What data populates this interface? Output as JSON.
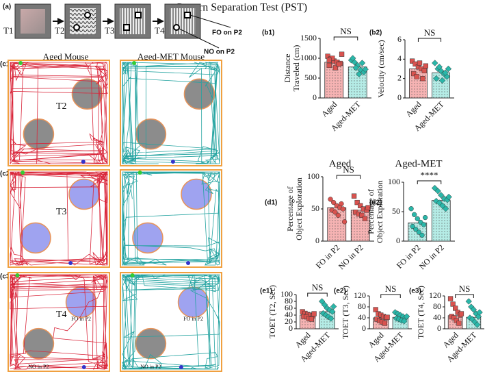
{
  "title": "Pattern Separation Test (PST)",
  "protocol": {
    "label": "(a)",
    "trials": [
      "T1",
      "T2",
      "T3",
      "T4"
    ],
    "callouts": [
      "FO on P2",
      "NO on P2"
    ]
  },
  "tracks": {
    "columns": [
      "Aged Mouse",
      "Aged-MET Mouse"
    ],
    "rows": [
      {
        "label": "(c1)",
        "trial": "T2"
      },
      {
        "label": "(c2)",
        "trial": "T3"
      },
      {
        "label": "(c3)",
        "trial": "T4",
        "objects": [
          "FO in P2",
          "NO in P2"
        ]
      }
    ]
  },
  "chart_data": [
    {
      "type": "bar",
      "label": "(b1)",
      "ylabel": [
        "Distance",
        "Traveled (cm)"
      ],
      "categories": [
        "Aged",
        "Aged-MET"
      ],
      "values": [
        900,
        780
      ],
      "colors": [
        "#f6b3b3",
        "#b5ece6"
      ],
      "point_colors": [
        "#d9534f",
        "#2ab7a9"
      ],
      "markers": [
        "square",
        "diamond"
      ],
      "points": [
        [
          1050,
          980,
          930,
          900,
          870,
          820,
          1000,
          760,
          850,
          1100,
          950
        ],
        [
          950,
          900,
          820,
          700,
          650,
          1000,
          760,
          600,
          880,
          720
        ]
      ],
      "ylim": [
        0,
        1500
      ],
      "yticks": [
        0,
        500,
        1000,
        1500
      ],
      "annotation": "NS"
    },
    {
      "type": "bar",
      "label": "(b2)",
      "ylabel": [
        "Velocity (cm/sec)"
      ],
      "categories": [
        "Aged",
        "Aged-MET"
      ],
      "values": [
        3.0,
        2.6
      ],
      "colors": [
        "#f6b3b3",
        "#b5ece6"
      ],
      "point_colors": [
        "#d9534f",
        "#2ab7a9"
      ],
      "markers": [
        "square",
        "diamond"
      ],
      "points": [
        [
          3.8,
          3.5,
          3.2,
          3.0,
          2.8,
          2.5,
          2.2,
          3.6,
          2.0,
          3.3
        ],
        [
          3.6,
          3.0,
          2.8,
          2.5,
          2.2,
          2.0,
          3.2,
          1.8,
          2.6,
          3.0
        ]
      ],
      "ylim": [
        0,
        6
      ],
      "yticks": [
        0,
        2,
        4,
        6
      ],
      "annotation": "NS"
    },
    {
      "type": "bar",
      "label": "(d1)",
      "title": "Aged",
      "ylabel": [
        "Percentage of",
        "Object Exploration"
      ],
      "categories": [
        "FO in P2",
        "NO in P2"
      ],
      "values": [
        52,
        48
      ],
      "colors": [
        "#f6b3b3",
        "#f6b3b3"
      ],
      "point_colors": [
        "#d9534f",
        "#d9534f"
      ],
      "markers": [
        "circle",
        "square"
      ],
      "points": [
        [
          65,
          60,
          55,
          52,
          50,
          48,
          45,
          40,
          58,
          30
        ],
        [
          70,
          60,
          55,
          50,
          48,
          45,
          42,
          40,
          35,
          52
        ]
      ],
      "ylim": [
        0,
        100
      ],
      "yticks": [
        0,
        50,
        100
      ],
      "annotation": "NS"
    },
    {
      "type": "bar",
      "label": "(d2)",
      "title": "Aged-MET",
      "ylabel": [
        "Percentage of",
        "Object Exploration"
      ],
      "categories": [
        "FO in P2",
        "NO in P2"
      ],
      "values": [
        31,
        69
      ],
      "colors": [
        "#b5ece6",
        "#b5ece6"
      ],
      "point_colors": [
        "#2ab7a9",
        "#2ab7a9"
      ],
      "markers": [
        "circle",
        "diamond"
      ],
      "points": [
        [
          55,
          45,
          38,
          32,
          28,
          25,
          20,
          15,
          10,
          40
        ],
        [
          90,
          85,
          78,
          72,
          70,
          68,
          65,
          60,
          55,
          75
        ]
      ],
      "ylim": [
        0,
        100
      ],
      "yticks": [
        0,
        50,
        100
      ],
      "annotation": "****"
    },
    {
      "type": "bar",
      "label": "(e1)",
      "ylabel": [
        "TOET (T2, Sec)"
      ],
      "categories": [
        "Aged",
        "Aged-MET"
      ],
      "values": [
        40,
        50
      ],
      "colors": [
        "#f6b3b3",
        "#b5ece6"
      ],
      "point_colors": [
        "#d9534f",
        "#2ab7a9"
      ],
      "markers": [
        "square",
        "diamond"
      ],
      "points": [
        [
          50,
          45,
          42,
          40,
          38,
          36,
          35,
          30,
          28,
          44
        ],
        [
          80,
          70,
          60,
          55,
          50,
          45,
          40,
          35,
          30,
          65
        ]
      ],
      "ylim": [
        0,
        100
      ],
      "yticks": [
        0,
        20,
        40,
        60,
        80,
        100
      ],
      "annotation": "NS"
    },
    {
      "type": "bar",
      "label": "(e2)",
      "ylabel": [
        "TOET (T3, Sec)"
      ],
      "categories": [
        "Aged",
        "Aged-MET"
      ],
      "values": [
        40,
        42
      ],
      "colors": [
        "#f6b3b3",
        "#b5ece6"
      ],
      "point_colors": [
        "#d9534f",
        "#2ab7a9"
      ],
      "markers": [
        "square",
        "diamond"
      ],
      "points": [
        [
          70,
          55,
          50,
          45,
          40,
          35,
          30,
          25,
          20,
          42
        ],
        [
          60,
          55,
          50,
          45,
          40,
          38,
          35,
          30,
          28,
          45
        ]
      ],
      "ylim": [
        0,
        120
      ],
      "yticks": [
        0,
        40,
        80,
        120
      ],
      "annotation": "NS"
    },
    {
      "type": "bar",
      "label": "(e3)",
      "ylabel": [
        "TOET (T4, Sec)"
      ],
      "categories": [
        "Aged",
        "Aged-MET"
      ],
      "values": [
        48,
        42
      ],
      "colors": [
        "#f6b3b3",
        "#b5ece6"
      ],
      "point_colors": [
        "#d9534f",
        "#2ab7a9"
      ],
      "markers": [
        "square",
        "diamond"
      ],
      "points": [
        [
          110,
          90,
          75,
          60,
          50,
          45,
          40,
          30,
          20,
          55
        ],
        [
          100,
          80,
          70,
          55,
          45,
          40,
          35,
          25,
          15,
          60
        ]
      ],
      "ylim": [
        0,
        120
      ],
      "yticks": [
        0,
        40,
        80,
        120
      ],
      "annotation": "NS"
    }
  ]
}
